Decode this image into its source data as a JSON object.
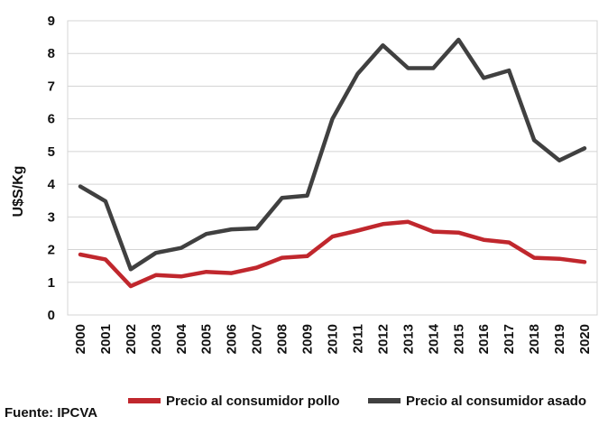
{
  "chart_data": {
    "type": "line",
    "title": "",
    "xlabel": "",
    "ylabel": "U$S/Kg",
    "ylim": [
      0,
      9
    ],
    "yticks": [
      "0",
      "1",
      "2",
      "3",
      "4",
      "5",
      "6",
      "7",
      "8",
      "9"
    ],
    "grid": true,
    "legend": "bottom",
    "categories": [
      "2000",
      "2001",
      "2002",
      "2003",
      "2004",
      "2005",
      "2006",
      "2007",
      "2008",
      "2009",
      "2010",
      "2011",
      "2012",
      "2013",
      "2014",
      "2015",
      "2016",
      "2017",
      "2018",
      "2019",
      "2020"
    ],
    "series": [
      {
        "name": "Precio al consumidor pollo",
        "color": "#c0272d",
        "values": [
          1.85,
          1.7,
          0.88,
          1.22,
          1.18,
          1.32,
          1.28,
          1.45,
          1.75,
          1.8,
          2.4,
          2.58,
          2.78,
          2.85,
          2.55,
          2.52,
          2.3,
          2.22,
          1.75,
          1.72,
          1.62
        ]
      },
      {
        "name": "Precio al consumidor asado",
        "color": "#404040",
        "values": [
          3.93,
          3.48,
          1.4,
          1.9,
          2.05,
          2.48,
          2.62,
          2.65,
          3.58,
          3.65,
          6.0,
          7.38,
          8.25,
          7.55,
          7.55,
          8.42,
          7.25,
          7.48,
          5.35,
          4.73,
          5.1
        ]
      }
    ],
    "source": "Fuente: IPCVA"
  }
}
